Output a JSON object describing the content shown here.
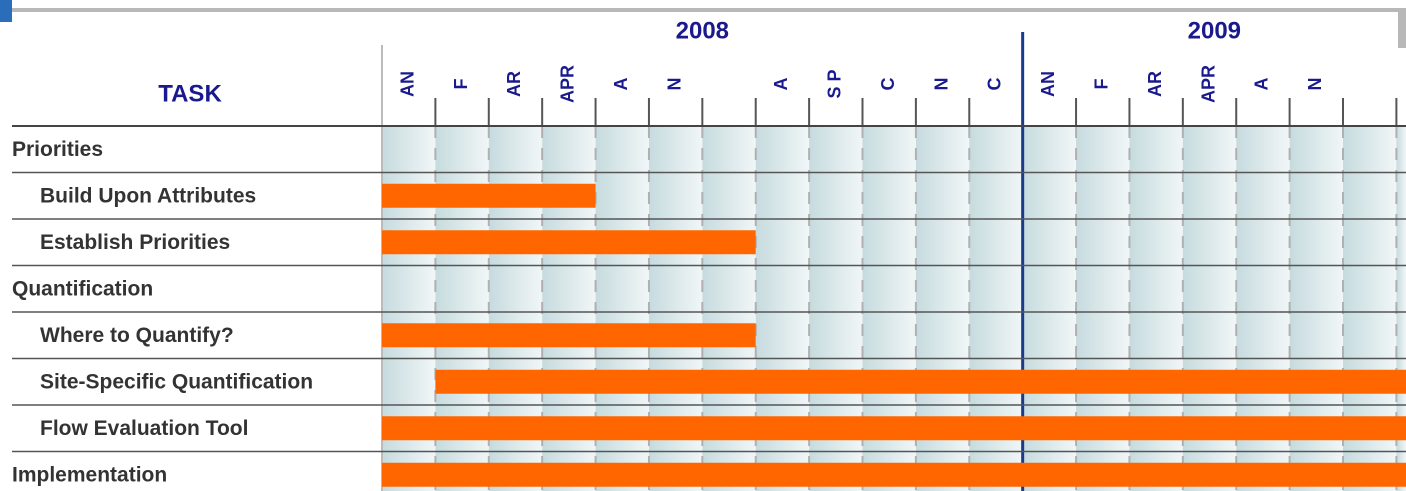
{
  "chart_data": {
    "type": "gantt",
    "header": "TASK",
    "years": [
      {
        "label": "2008",
        "start": 0
      },
      {
        "label": "2009",
        "start": 12
      }
    ],
    "months": [
      "AN",
      "F",
      "AR",
      "APR",
      "A",
      "N",
      null,
      "A",
      "S P",
      "C",
      "N",
      "C",
      "AN",
      "F",
      "AR",
      "APR",
      "A",
      "N",
      null
    ],
    "xlim": [
      0,
      19.18
    ],
    "bar_color": "#ff6600",
    "tasks": [
      {
        "name": "Priorities",
        "level": 0,
        "start": null,
        "end": null
      },
      {
        "name": "Build Upon Attributes",
        "level": 1,
        "start": 0,
        "end": 4
      },
      {
        "name": "Establish Priorities",
        "level": 1,
        "start": 0,
        "end": 7
      },
      {
        "name": "Quantification",
        "level": 0,
        "start": null,
        "end": null
      },
      {
        "name": "Where to Quantify?",
        "level": 1,
        "start": 0,
        "end": 7
      },
      {
        "name": "Site-Specific Quantification",
        "level": 1,
        "start": 1,
        "end": 19.18
      },
      {
        "name": "Flow Evaluation Tool",
        "level": 1,
        "start": 0,
        "end": 19.18
      },
      {
        "name": "Implementation",
        "level": 0,
        "start": 0,
        "end": 19.18
      }
    ]
  }
}
